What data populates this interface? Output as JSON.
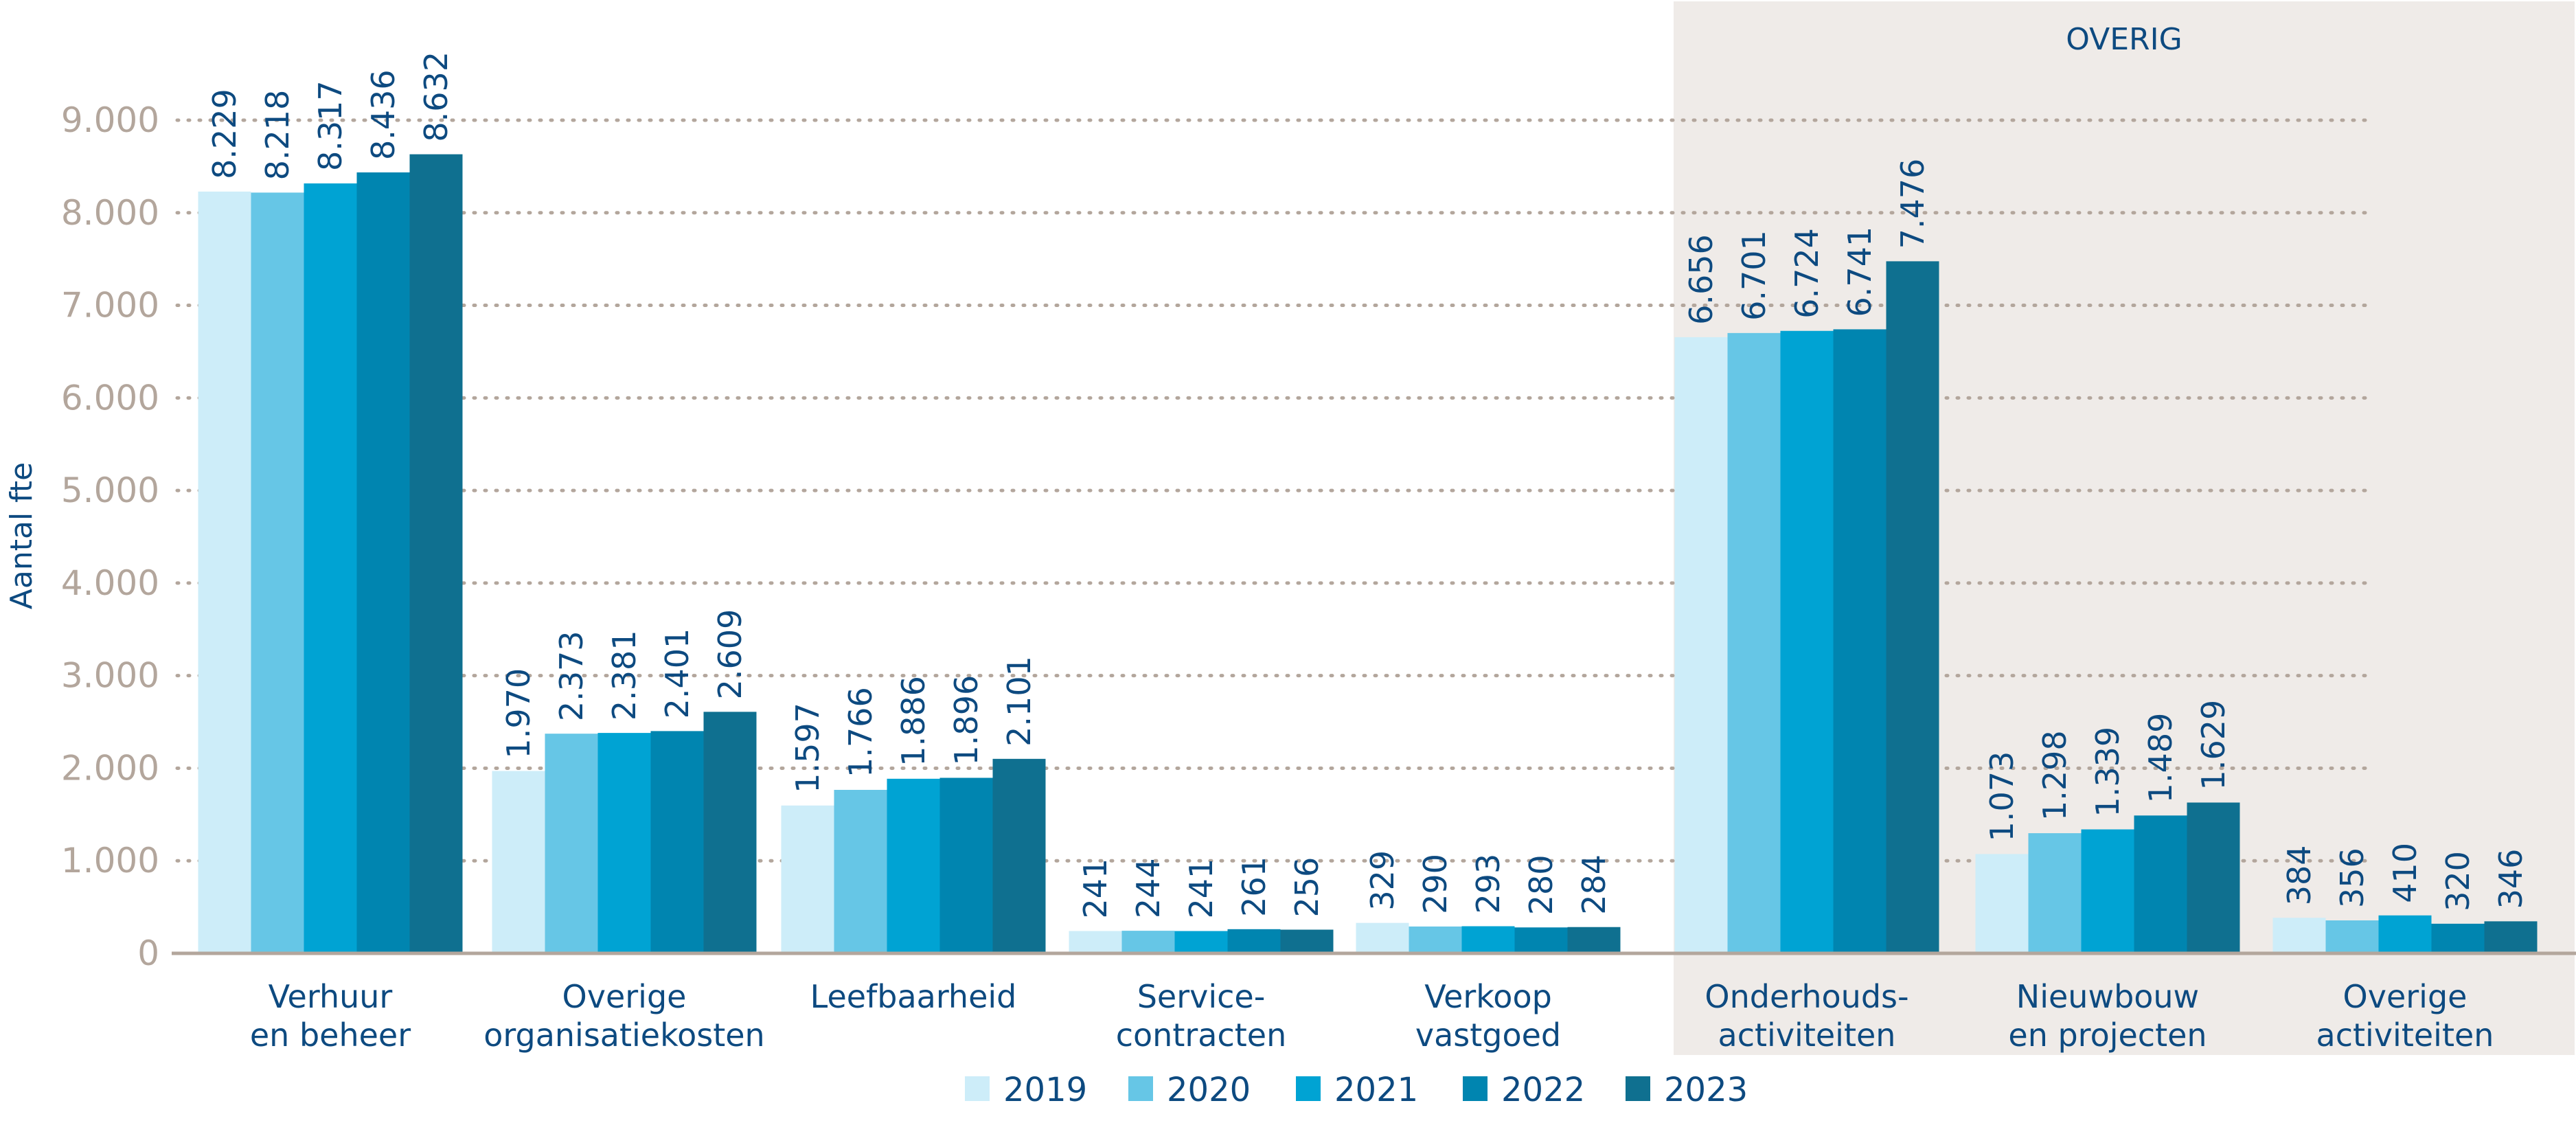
{
  "chart_data": {
    "type": "bar",
    "ylabel": "Aantal fte",
    "ylim": [
      0,
      9000
    ],
    "yticks": [
      "0",
      "1.000",
      "2.000",
      "3.000",
      "4.000",
      "5.000",
      "6.000",
      "7.000",
      "8.000",
      "9.000"
    ],
    "grid": true,
    "legend_position": "bottom",
    "section_label": "OVERIG",
    "section_categories": [
      5,
      6,
      7
    ],
    "categories": [
      [
        "Verhuur",
        "en beheer"
      ],
      [
        "Overige",
        "organisatiekosten"
      ],
      [
        "Leefbaarheid"
      ],
      [
        "Service-",
        "contracten"
      ],
      [
        "Verkoop",
        "vastgoed"
      ],
      [
        "Onderhouds-",
        "activiteiten"
      ],
      [
        "Nieuwbouw",
        "en projecten"
      ],
      [
        "Overige",
        "activiteiten"
      ]
    ],
    "series": [
      {
        "name": "2019",
        "color": "#cdedf9",
        "values": [
          8229,
          1970,
          1597,
          241,
          329,
          6656,
          1073,
          384
        ],
        "labels": [
          "8.229",
          "1.970",
          "1.597",
          "241",
          "329",
          "6.656",
          "1.073",
          "384"
        ]
      },
      {
        "name": "2020",
        "color": "#66c6e6",
        "values": [
          8218,
          2373,
          1766,
          244,
          290,
          6701,
          1298,
          356
        ],
        "labels": [
          "8.218",
          "2.373",
          "1.766",
          "244",
          "290",
          "6.701",
          "1.298",
          "356"
        ]
      },
      {
        "name": "2021",
        "color": "#00a3d3",
        "values": [
          8317,
          2381,
          1886,
          241,
          293,
          6724,
          1339,
          410
        ],
        "labels": [
          "8.317",
          "2.381",
          "1.886",
          "241",
          "293",
          "6.724",
          "1.339",
          "410"
        ]
      },
      {
        "name": "2022",
        "color": "#0085b0",
        "values": [
          8436,
          2401,
          1896,
          261,
          280,
          6741,
          1489,
          320
        ],
        "labels": [
          "8.436",
          "2.401",
          "1.896",
          "261",
          "280",
          "6.741",
          "1.489",
          "320"
        ]
      },
      {
        "name": "2023",
        "color": "#0f7090",
        "values": [
          8632,
          2609,
          2101,
          256,
          284,
          7476,
          1629,
          346
        ],
        "labels": [
          "8.632",
          "2.609",
          "2.101",
          "256",
          "284",
          "7.476",
          "1.629",
          "346"
        ]
      }
    ]
  }
}
